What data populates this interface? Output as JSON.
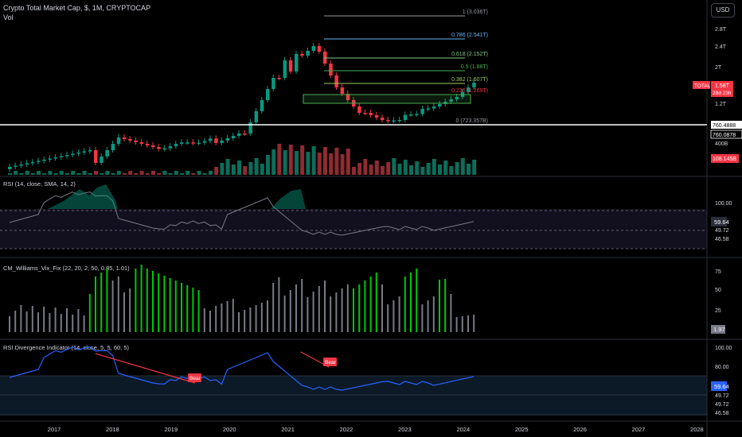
{
  "header": {
    "symbol": "Crypto Total Market Cap, $, 1M, CRYPTOCAP",
    "volume_label": "Vol",
    "currency_button": "USD"
  },
  "fib": {
    "levels": [
      {
        "label": "1 (3.036T)",
        "color": "#9598a1"
      },
      {
        "label": "0.786 (2.541T)",
        "color": "#64b5f6"
      },
      {
        "label": "0.618 (2.152T)",
        "color": "#81c784"
      },
      {
        "label": "0.5 (1.88T)",
        "color": "#4caf50"
      },
      {
        "label": "0.382 (1.607T)",
        "color": "#9ccc65"
      },
      {
        "label": "0.236 (1.269T)",
        "color": "#f23645"
      },
      {
        "label": "0 (723.357B)",
        "color": "#9598a1"
      }
    ]
  },
  "price_axis": {
    "ticks": [
      "2.8T",
      "2.4T",
      "2T",
      "1.2T",
      "400B"
    ],
    "total_label": "TOTAL",
    "total_value": "1.58T",
    "countdown": "28d 23h",
    "line_value": "760.4888",
    "line_value2": "760.0878",
    "volume_value": "108.145B"
  },
  "rsi": {
    "title": "RSI (14, close, SMA, 14, 2)",
    "ticks": [
      "100.00"
    ],
    "value": "59.64",
    "values2": [
      "49.72",
      "46.58"
    ]
  },
  "vix": {
    "title": "CM_Williams_Vix_Fix (22, 20, 2, 50, 0.85, 1.01)",
    "ticks": [
      "75",
      "50",
      "25"
    ],
    "value": "1.97"
  },
  "div": {
    "title": "RSI Divergence Indicator (14, close, 5, 5, 60, 5)",
    "ticks": [
      "100.00",
      "80.00"
    ],
    "value": "59.64",
    "values2": [
      "49.72",
      "49.72",
      "46.58"
    ],
    "bear_label": "Bear"
  },
  "time_axis": [
    "2017",
    "2018",
    "2019",
    "2020",
    "2021",
    "2022",
    "2023",
    "2024",
    "2025",
    "2026",
    "2027",
    "2028"
  ],
  "colors": {
    "up": "#089981",
    "down": "#f23645",
    "rsi": "#787b86",
    "div": "#2962ff",
    "vix_green": "#00c805",
    "vix_gray": "#787b86"
  }
}
